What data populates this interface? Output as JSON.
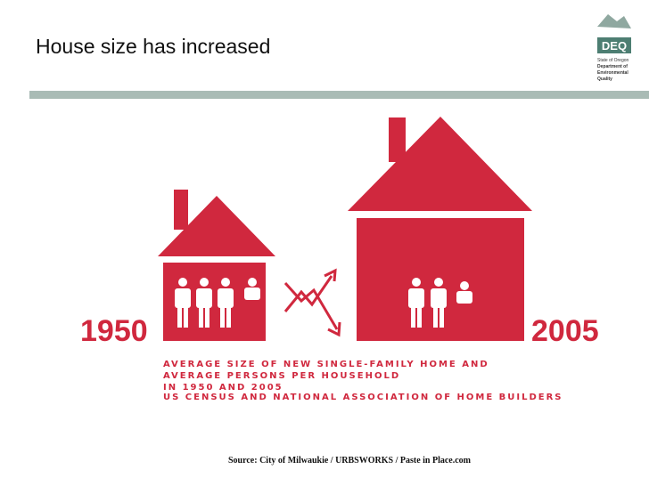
{
  "header": {
    "title": "House size has increased"
  },
  "logo": {
    "acronym": "DEQ",
    "lines": [
      "State of Oregon",
      "Department of",
      "Environmental",
      "Quality"
    ]
  },
  "infographic": {
    "year_left": "1950",
    "year_right": "2005",
    "caption": [
      "AVERAGE SIZE OF NEW SINGLE-FAMILY HOME AND",
      "AVERAGE PERSONS PER HOUSEHOLD",
      "IN 1950 AND 2005"
    ],
    "credit": "US CENSUS AND NATIONAL ASSOCIATION OF HOME BUILDERS"
  },
  "footer": {
    "source": "Source: City of Milwaukie / URBSWORKS / Paste in Place.com"
  }
}
